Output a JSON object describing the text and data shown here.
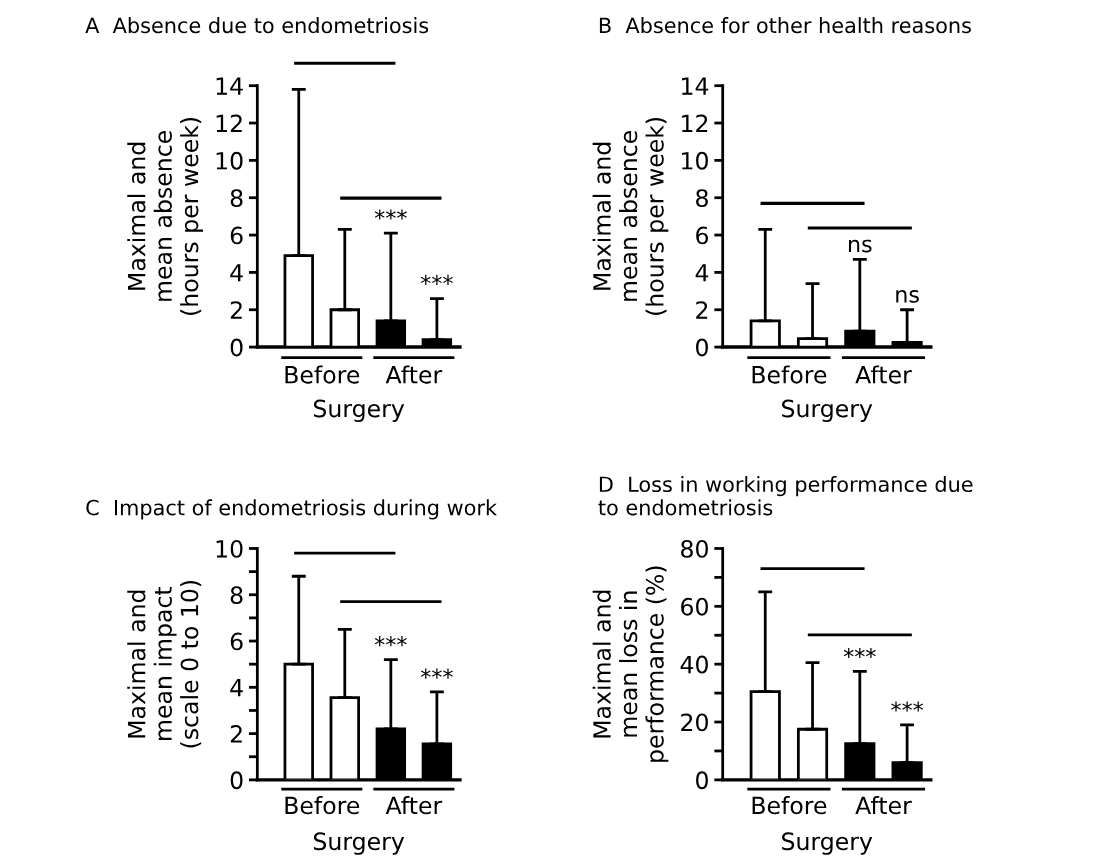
{
  "chart_data": [
    {
      "type": "bar",
      "title": "A  Absence due to endometriosis",
      "ylabel": "Maximal and\nmean absence\n(hours per week)",
      "xlabel": "Surgery",
      "categories": [
        null,
        null,
        null,
        null
      ],
      "values": [
        4.9,
        2.0,
        1.4,
        0.4
      ],
      "colors": [
        "#ffffff",
        "#ffffff",
        "#000000",
        "#000000"
      ],
      "errors": [
        [
          4.9,
          13.8
        ],
        [
          2.0,
          6.3
        ],
        [
          1.4,
          6.1
        ],
        [
          0.4,
          2.6
        ]
      ],
      "annotations": [
        "Before",
        "After",
        "***",
        "***"
      ],
      "ylim": [
        0,
        14
      ],
      "yticks": [
        0,
        2,
        4,
        6,
        8,
        10,
        12,
        14
      ],
      "grid": false,
      "legend": false
    },
    {
      "type": "bar",
      "title": "B  Absence for other health reasons",
      "ylabel": "Maximal and\nmean absence\n(hours per week)",
      "xlabel": "Surgery",
      "categories": [
        null,
        null,
        null,
        null
      ],
      "values": [
        1.4,
        0.45,
        0.85,
        0.25
      ],
      "colors": [
        "#ffffff",
        "#ffffff",
        "#000000",
        "#000000"
      ],
      "errors": [
        [
          1.4,
          6.3
        ],
        [
          0.45,
          3.4
        ],
        [
          0.85,
          4.7
        ],
        [
          0.25,
          2.0
        ]
      ],
      "annotations": [
        "Before",
        "After",
        "ns",
        "ns"
      ],
      "ylim": [
        0,
        14
      ],
      "yticks": [
        0,
        2,
        4,
        6,
        8,
        10,
        12,
        14
      ],
      "grid": false,
      "legend": false
    },
    {
      "type": "bar",
      "title": "C  Impact of endometriosis during work",
      "ylabel": "Maximal and\nmean impact\n(scale 0 to 10)",
      "xlabel": "Surgery",
      "categories": [
        null,
        null,
        null,
        null
      ],
      "values": [
        5.0,
        3.55,
        2.2,
        1.55
      ],
      "colors": [
        "#ffffff",
        "#ffffff",
        "#000000",
        "#000000"
      ],
      "errors": [
        [
          5.0,
          8.8
        ],
        [
          3.55,
          6.5
        ],
        [
          2.2,
          5.2
        ],
        [
          1.55,
          3.8
        ]
      ],
      "annotations": [
        "Before",
        "After",
        "***",
        "***"
      ],
      "ylim": [
        0,
        10
      ],
      "yticks": [
        0,
        {
          "value": 1,
          "label": null
        },
        2,
        {
          "value": 3,
          "label": null
        },
        4,
        {
          "value": 5,
          "label": null
        },
        6,
        {
          "value": 7,
          "label": null
        },
        8,
        {
          "value": 9,
          "label": null
        },
        10
      ],
      "grid": false,
      "legend": false
    },
    {
      "type": "bar",
      "title": "D  Loss in working performance due\nto endometriosis",
      "ylabel": "Maximal and\nmean loss in\nperformance (%)",
      "xlabel": "Surgery",
      "categories": [
        null,
        null,
        null,
        null
      ],
      "values": [
        30.5,
        17.5,
        12.5,
        6.0
      ],
      "colors": [
        "#ffffff",
        "#ffffff",
        "#000000",
        "#000000"
      ],
      "errors": [
        [
          30.5,
          65
        ],
        [
          17.5,
          40.5
        ],
        [
          12.5,
          37.5
        ],
        [
          6.0,
          19
        ]
      ],
      "annotations": [
        "Before",
        "After",
        "***",
        "***"
      ],
      "ylim": [
        0,
        80
      ],
      "yticks": [
        0,
        {
          "value": 10,
          "label": null
        },
        20,
        {
          "value": 30,
          "label": null
        },
        40,
        {
          "value": 50,
          "label": null
        },
        60,
        {
          "value": 70,
          "label": null
        },
        80
      ],
      "grid": false,
      "legend": false
    }
  ]
}
